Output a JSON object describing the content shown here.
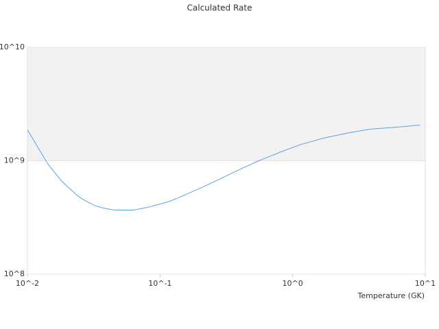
{
  "chart_data": {
    "type": "line",
    "title": "Calculated Rate",
    "x_label": "Temperature (GK)",
    "x_log": true,
    "y_log": true,
    "xlim": [
      0.01,
      10
    ],
    "ylim": [
      100000000,
      10000000000
    ],
    "xticks": [
      {
        "value": 0.01,
        "label": "10^-2"
      },
      {
        "value": 0.1,
        "label": "10^-1"
      },
      {
        "value": 1,
        "label": "10^0"
      },
      {
        "value": 10,
        "label": "10^1"
      }
    ],
    "yticks": [
      {
        "value": 100000000,
        "label": "10^8"
      },
      {
        "value": 1000000000,
        "label": "10^9"
      },
      {
        "value": 10000000000,
        "label": "10^10"
      }
    ],
    "x": [
      0.01,
      0.01196,
      0.0143,
      0.01815,
      0.023,
      0.0259,
      0.0318,
      0.0371,
      0.0454,
      0.0634,
      0.0804,
      0.0961,
      0.115,
      0.1375,
      0.196,
      0.281,
      0.357,
      0.541,
      0.82,
      1.17,
      1.78,
      2.7,
      3.86,
      6.21,
      9.1
    ],
    "series": [
      {
        "color": "#5aa0e6",
        "values": [
          1870000000,
          1320000000,
          930000000,
          660000000,
          510000000,
          460000000,
          405000000,
          383000000,
          367000000,
          367000000,
          388000000,
          410000000,
          434000000,
          472000000,
          565000000,
          687000000,
          789000000,
          986000000,
          1200000000,
          1400000000,
          1600000000,
          1770000000,
          1900000000,
          1980000000,
          2060000000
        ]
      }
    ]
  }
}
